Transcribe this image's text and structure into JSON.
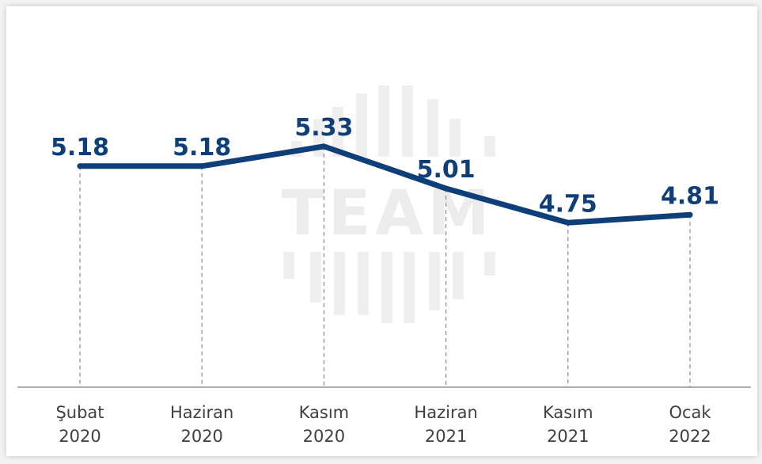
{
  "watermark": {
    "text": "TEAM"
  },
  "chart_data": {
    "type": "line",
    "categories": [
      [
        "Şubat",
        "2020"
      ],
      [
        "Haziran",
        "2020"
      ],
      [
        "Kasım",
        "2020"
      ],
      [
        "Haziran",
        "2021"
      ],
      [
        "Kasım",
        "2021"
      ],
      [
        "Ocak",
        "2022"
      ]
    ],
    "series": [
      {
        "values": [
          5.18,
          5.18,
          5.33,
          5.01,
          4.75,
          4.81
        ]
      }
    ],
    "data_labels": [
      "5.18",
      "5.18",
      "5.33",
      "5.01",
      "4.75",
      "4.81"
    ],
    "ylim": [
      3.5,
      5.6
    ],
    "grid": false,
    "line_color": "#0e3f78",
    "drop_line_color": "#8a8a8a",
    "axis_color": "#7a7a7a"
  }
}
